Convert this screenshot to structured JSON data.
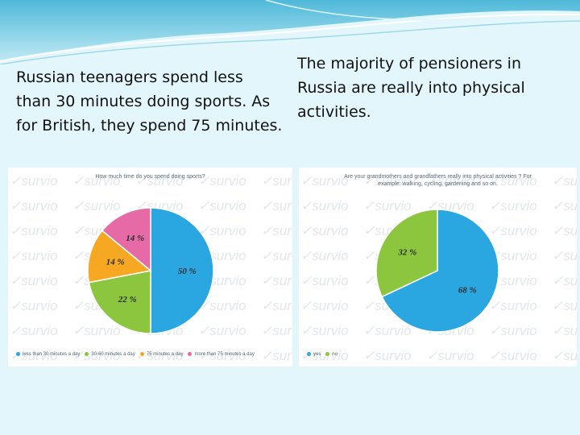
{
  "slide": {
    "left_text": [
      "Russian teenagers spend less",
      "than 30 minutes doing sports. As",
      "for British, they spend 75 minutes."
    ],
    "right_text": [
      "The majority of pensioners in",
      "Russia are  really into physical",
      "activities."
    ],
    "watermark": "survio"
  },
  "chart_data": [
    {
      "type": "pie",
      "title": "How much time do you spend doing sports?",
      "categories": [
        "less than 30 minutes a day",
        "30-60 minutes a day",
        "75 minutes a day",
        "more than 75 minutes a day"
      ],
      "values": [
        50,
        22,
        14,
        14
      ],
      "labels": [
        "50 %",
        "22 %",
        "14 %",
        "14 %"
      ],
      "colors": [
        "#2aa7e0",
        "#8cc63f",
        "#f7a823",
        "#e66aa6"
      ],
      "legend": "bottom"
    },
    {
      "type": "pie",
      "title": [
        "Are your grandmothers and grandfathers really into physical activities ? For",
        "example: walking, cycling, gardening and so on."
      ],
      "categories": [
        "yes",
        "no"
      ],
      "values": [
        68,
        32
      ],
      "labels": [
        "68 %",
        "32 %"
      ],
      "colors": [
        "#2aa7e0",
        "#8cc63f"
      ],
      "legend": "bottom"
    }
  ]
}
